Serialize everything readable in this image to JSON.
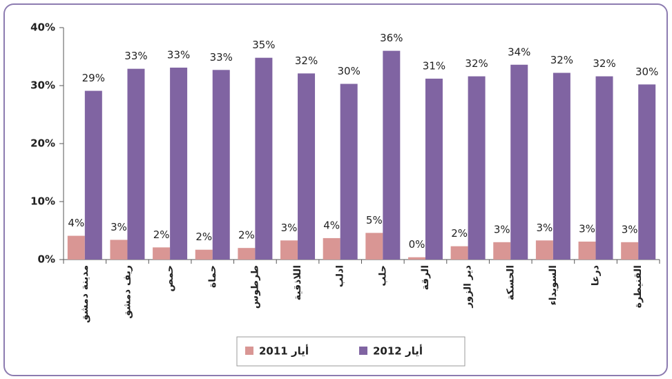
{
  "chart_data": {
    "type": "bar",
    "categories": [
      "مدينة دمشق",
      "ريف دمشق",
      "حمص",
      "حماة",
      "طرطوس",
      "اللاذقية",
      "ادلب",
      "حلب",
      "الرقة",
      "دير الزور",
      "الحسكة",
      "السويداء",
      "درعا",
      "القنيطرة"
    ],
    "series": [
      {
        "name": "أيار 2011",
        "color": "#d99694",
        "values": [
          4.1,
          3.4,
          2.1,
          1.7,
          2.0,
          3.3,
          3.7,
          4.6,
          0.4,
          2.3,
          3.0,
          3.3,
          3.1,
          3.0
        ],
        "value_labels": [
          "4%",
          "3%",
          "2%",
          "2%",
          "2%",
          "3%",
          "4%",
          "5%",
          "0%",
          "2%",
          "3%",
          "3%",
          "3%",
          "3%"
        ]
      },
      {
        "name": "أيار 2012",
        "color": "#8064a2",
        "values": [
          29.1,
          32.9,
          33.1,
          32.7,
          34.8,
          32.1,
          30.3,
          36.0,
          31.2,
          31.6,
          33.6,
          32.2,
          31.6,
          30.2
        ],
        "value_labels": [
          "29%",
          "33%",
          "33%",
          "33%",
          "35%",
          "32%",
          "30%",
          "36%",
          "31%",
          "32%",
          "34%",
          "32%",
          "32%",
          "30%"
        ]
      }
    ],
    "ylim": [
      0,
      40
    ],
    "yticks": [
      {
        "value": 0,
        "label": "0%"
      },
      {
        "value": 10,
        "label": "10%"
      },
      {
        "value": 20,
        "label": "20%"
      },
      {
        "value": 30,
        "label": "30%"
      },
      {
        "value": 40,
        "label": "40%"
      }
    ],
    "grid": false
  }
}
